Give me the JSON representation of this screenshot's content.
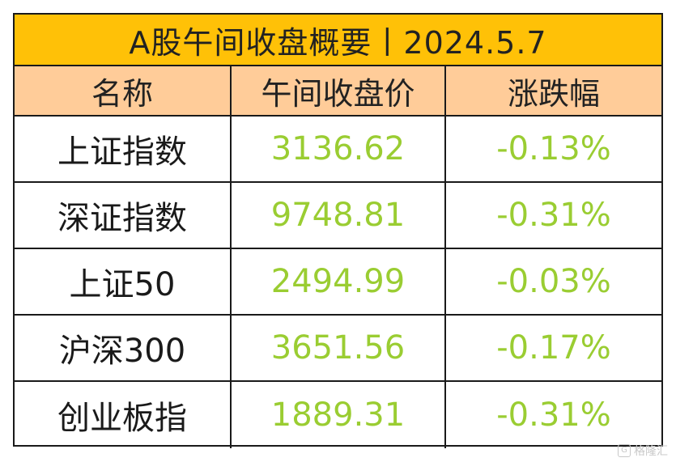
{
  "title": "A股午间收盘概要丨2024.5.7",
  "headers": [
    "名称",
    "午间收盘价",
    "涨跌幅"
  ],
  "rows": [
    {
      "name": "上证指数",
      "price": "3136.62",
      "change": "-0.13%"
    },
    {
      "name": "深证指数",
      "price": "9748.81",
      "change": "-0.31%"
    },
    {
      "name": "上证50",
      "price": "2494.99",
      "change": "-0.03%"
    },
    {
      "name": "沪深300",
      "price": "3651.56",
      "change": "-0.17%"
    },
    {
      "name": "创业板指",
      "price": "1889.31",
      "change": "-0.31%"
    }
  ],
  "watermark": {
    "icon": "G",
    "text": "格隆汇"
  },
  "colors": {
    "title_bg": "#ffc107",
    "header_bg": "#ffcc99",
    "value_color": "#9acd32"
  }
}
